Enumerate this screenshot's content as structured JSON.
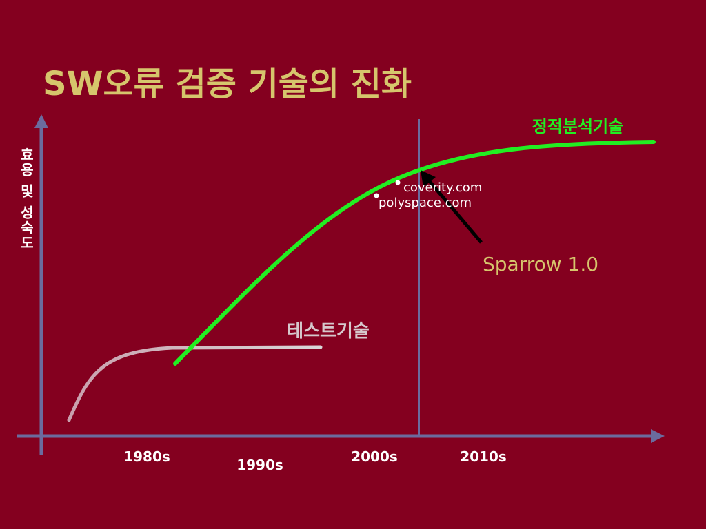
{
  "title": "SW오류 검증 기술의 진화",
  "y_axis_label": "효용 및 성숙도",
  "x_labels": [
    "1980s",
    "1990s",
    "2000s",
    "2010s"
  ],
  "curves": {
    "static_analysis": "정적분석기술",
    "testing": "테스트기술"
  },
  "annotations": {
    "coverity": "coverity.com",
    "polyspace": "polyspace.com",
    "sparrow": "Sparrow 1.0"
  }
}
